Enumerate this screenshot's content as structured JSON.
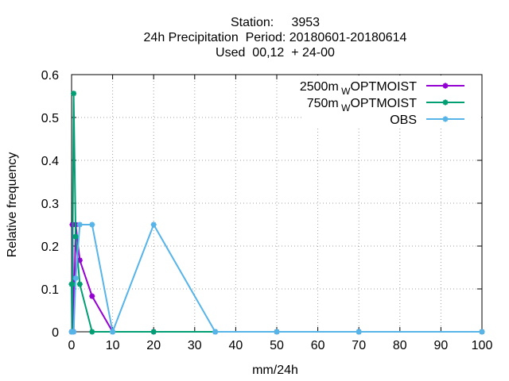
{
  "title": {
    "line1": "Station:     3953",
    "line2": "24h Precipitation  Period: 20180601-20180614",
    "line3": "Used  00,12  + 24-00"
  },
  "chart_data": {
    "type": "line",
    "xlabel": "mm/24h",
    "ylabel": "Relative frequency",
    "xlim": [
      0,
      100
    ],
    "ylim": [
      0,
      0.6
    ],
    "x_ticks": [
      0,
      10,
      20,
      30,
      40,
      50,
      60,
      70,
      80,
      90,
      100
    ],
    "y_ticks": [
      0,
      0.1,
      0.2,
      0.3,
      0.4,
      0.5,
      0.6
    ],
    "x_tick_labels": [
      "0",
      "10",
      "20",
      "30",
      "40",
      "50",
      "60",
      "70",
      "80",
      "90",
      "100"
    ],
    "y_tick_labels": [
      "0",
      "0.1",
      "0.2",
      "0.3",
      "0.4",
      "0.5",
      "0.6"
    ],
    "grid": true,
    "legend_position": "top-right",
    "series": [
      {
        "name": "2500m",
        "name_subscript": "W",
        "name_suffix": "OPTMOIST",
        "color": "#9400d3",
        "x": [
          0,
          0.1,
          0.2,
          0.5,
          1,
          2,
          5,
          10,
          20,
          35,
          50,
          70,
          100
        ],
        "y": [
          0,
          0,
          0.25,
          0,
          0.25,
          0.167,
          0.083,
          0,
          0,
          0,
          0,
          0,
          0
        ]
      },
      {
        "name": "750m",
        "name_subscript": "W",
        "name_suffix": "OPTMOIST",
        "color": "#009e73",
        "x": [
          0,
          0.1,
          0.2,
          0.5,
          1,
          2,
          5,
          10,
          20,
          35,
          50,
          70,
          100
        ],
        "y": [
          0.111,
          0,
          0.111,
          0.556,
          0.222,
          0.111,
          0,
          0,
          0,
          0,
          0,
          0,
          0
        ]
      },
      {
        "name": "OBS",
        "name_subscript": "",
        "name_suffix": "",
        "color": "#56b4e9",
        "x": [
          0,
          0.1,
          0.2,
          0.5,
          1,
          2,
          5,
          10,
          20,
          35,
          50,
          70,
          100
        ],
        "y": [
          0,
          0,
          0,
          0,
          0.125,
          0.25,
          0.25,
          0,
          0.25,
          0,
          0,
          0,
          0
        ]
      }
    ]
  }
}
